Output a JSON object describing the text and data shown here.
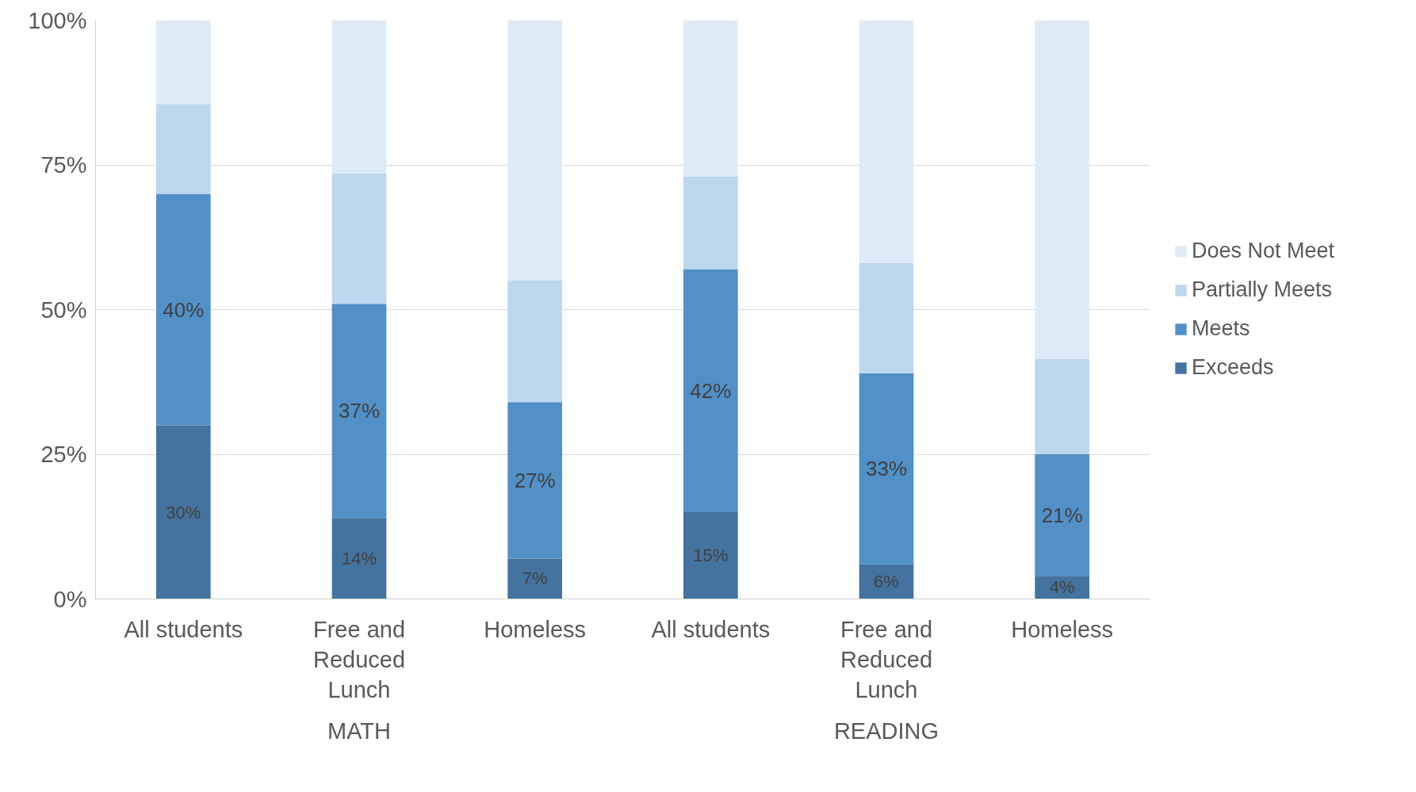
{
  "chart_data": {
    "type": "bar",
    "stacked": true,
    "categories": [
      "All students",
      "Free and Reduced Lunch",
      "Homeless",
      "All students",
      "Free and Reduced Lunch",
      "Homeless"
    ],
    "series": [
      {
        "name": "Exceeds",
        "color": "#44739f",
        "values": [
          30,
          14,
          7,
          15,
          6,
          4
        ],
        "value_labels": [
          "30%",
          "14%",
          "7%",
          "15%",
          "6%",
          "4%"
        ]
      },
      {
        "name": "Meets",
        "color": "#5290c8",
        "values": [
          40,
          37,
          27,
          42,
          33,
          21
        ],
        "value_labels": [
          "40%",
          "37%",
          "27%",
          "42%",
          "33%",
          "21%"
        ]
      },
      {
        "name": "Partially Meets",
        "color": "#bdd7ee",
        "values": [
          15.5,
          22.5,
          21,
          16,
          19,
          16.5
        ]
      },
      {
        "name": "Does Not Meet",
        "color": "#deebf7",
        "values": [
          14.5,
          26.5,
          45,
          27,
          42,
          58.5
        ]
      }
    ],
    "ylim": [
      0,
      100
    ],
    "yticks": [
      {
        "value": 0,
        "label": "0%"
      },
      {
        "value": 25,
        "label": "25%"
      },
      {
        "value": 50,
        "label": "50%"
      },
      {
        "value": 75,
        "label": "75%"
      },
      {
        "value": 100,
        "label": "100%"
      }
    ],
    "grid": "y",
    "legend": "right",
    "annotations": [
      "MATH",
      "READING"
    ]
  }
}
